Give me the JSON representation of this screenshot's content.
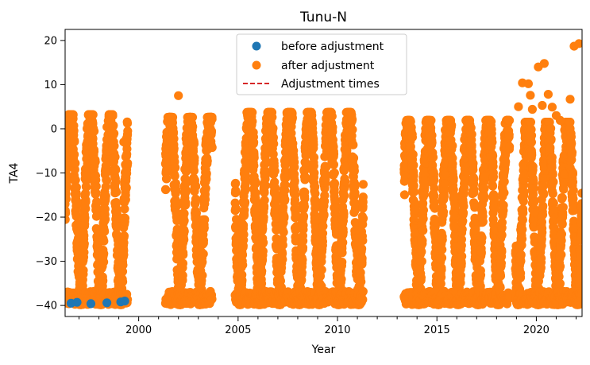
{
  "chart_data": {
    "type": "scatter",
    "title": "Tunu-N",
    "xlabel": "Year",
    "ylabel": "TA4",
    "xlim": [
      1996.3,
      2022.3
    ],
    "ylim": [
      -42.5,
      22.5
    ],
    "xticks": [
      2000,
      2005,
      2010,
      2015,
      2020
    ],
    "yticks": [
      -40,
      -30,
      -20,
      -10,
      0,
      10,
      20
    ],
    "grid": false,
    "legend_placement": "top-center",
    "legend": [
      "before adjustment",
      "after adjustment",
      "Adjustment times"
    ],
    "series": [
      {
        "name": "before adjustment",
        "color": "#1f77b4",
        "marker": "circle",
        "points": [
          [
            1996.6,
            -39.5
          ],
          [
            1996.9,
            -39.3
          ],
          [
            1997.6,
            -39.6
          ],
          [
            1998.4,
            -39.4
          ],
          [
            1999.1,
            -39.2
          ],
          [
            1999.3,
            -39.0
          ]
        ]
      },
      {
        "name": "after adjustment",
        "color": "#ff7f0e",
        "marker": "circle",
        "note_segments": "dense seasonal oscillation between about -40 and 0 in years with data",
        "segments": [
          {
            "start": 1996.3,
            "end": 1999.45,
            "max": 3.2,
            "min": -39.8
          },
          {
            "start": 2001.35,
            "end": 2003.7,
            "max": 2.6,
            "min": -39.8
          },
          {
            "start": 2004.85,
            "end": 2011.3,
            "max": 3.7,
            "min": -39.8
          },
          {
            "start": 2013.35,
            "end": 2018.65,
            "max": 1.9,
            "min": -39.8
          },
          {
            "start": 2018.95,
            "end": 2022.3,
            "max": 1.5,
            "min": -39.8
          }
        ],
        "outliers": [
          [
            1999.25,
            -3.0
          ],
          [
            2002.0,
            7.5
          ],
          [
            2019.1,
            5.0
          ],
          [
            2019.3,
            10.4
          ],
          [
            2019.6,
            10.2
          ],
          [
            2019.7,
            7.6
          ],
          [
            2019.8,
            4.4
          ],
          [
            2020.1,
            14.0
          ],
          [
            2020.4,
            14.8
          ],
          [
            2020.6,
            7.8
          ],
          [
            2020.8,
            4.9
          ],
          [
            2021.0,
            3.0
          ],
          [
            2021.7,
            6.7
          ],
          [
            2021.9,
            18.7
          ],
          [
            2022.15,
            19.3
          ],
          [
            2020.3,
            5.3
          ],
          [
            2021.2,
            1.9
          ]
        ]
      },
      {
        "name": "Adjustment times",
        "color": "#d62728",
        "line_style": "dashed",
        "x": []
      }
    ]
  }
}
